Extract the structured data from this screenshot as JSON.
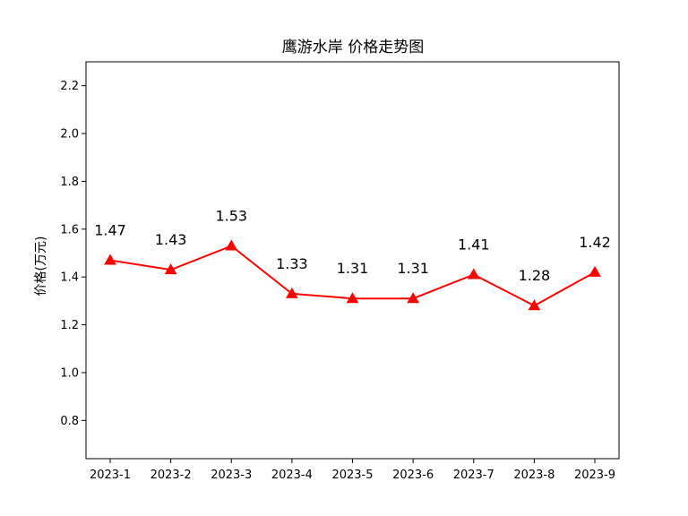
{
  "chart_data": {
    "type": "line",
    "title": "鹰游水岸 价格走势图",
    "xlabel": "",
    "ylabel": "价格(万元)",
    "categories": [
      "2023-1",
      "2023-2",
      "2023-3",
      "2023-4",
      "2023-5",
      "2023-6",
      "2023-7",
      "2023-8",
      "2023-9"
    ],
    "series": [
      {
        "values": [
          1.47,
          1.43,
          1.53,
          1.33,
          1.31,
          1.31,
          1.41,
          1.28,
          1.42
        ],
        "color": "#ff0000",
        "marker": "triangle-up"
      }
    ],
    "data_labels": [
      "1.47",
      "1.43",
      "1.53",
      "1.33",
      "1.31",
      "1.31",
      "1.41",
      "1.28",
      "1.42"
    ],
    "ylim": [
      0.64,
      2.3
    ],
    "yticks": [
      0.8,
      1.0,
      1.2,
      1.4,
      1.6,
      1.8,
      2.0,
      2.2
    ],
    "ytick_labels": [
      "0.8",
      "1.0",
      "1.2",
      "1.4",
      "1.6",
      "1.8",
      "2.0",
      "2.2"
    ],
    "grid": false,
    "legend": "none"
  }
}
